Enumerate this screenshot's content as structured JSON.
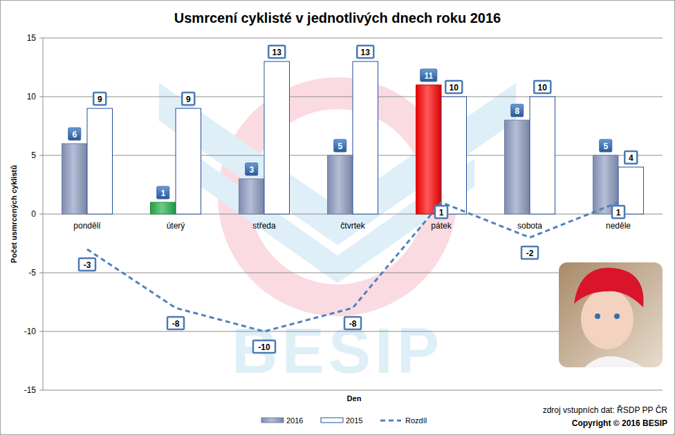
{
  "chart_data": {
    "type": "bar",
    "title": "Usmrcení cyklisté v jednotlivých dnech roku 2016",
    "x_label": "Den",
    "y_label": "Počet usmrcených cyklistů",
    "categories": [
      "pondělí",
      "úterý",
      "středa",
      "čtvrtek",
      "pátek",
      "sobota",
      "neděle"
    ],
    "series": [
      {
        "name": "2016",
        "type": "bar",
        "color": "#8d9bc2",
        "colors": [
          "#8d9bc2",
          "#22b14c",
          "#8d9bc2",
          "#8d9bc2",
          "#ff0000",
          "#8d9bc2",
          "#8d9bc2"
        ],
        "values": [
          6,
          1,
          3,
          5,
          11,
          8,
          5
        ]
      },
      {
        "name": "2015",
        "type": "bar",
        "color": "#ffffff",
        "values": [
          9,
          9,
          13,
          13,
          10,
          10,
          4
        ]
      },
      {
        "name": "Rozdíl",
        "type": "line",
        "line_style": "dashed",
        "color": "#4f81bd",
        "values": [
          -3,
          -8,
          -10,
          -8,
          1,
          -2,
          1
        ]
      }
    ],
    "ylim": [
      -15,
      15
    ],
    "yticks": [
      -15,
      -10,
      -5,
      0,
      5,
      10,
      15
    ],
    "grid": true,
    "legend": "bottom",
    "data_labels": true,
    "annotations": [
      "zdroj vstupních dat: ŘSDP PP ČR",
      "Copyright © 2016 BESIP",
      "BESIP"
    ]
  }
}
